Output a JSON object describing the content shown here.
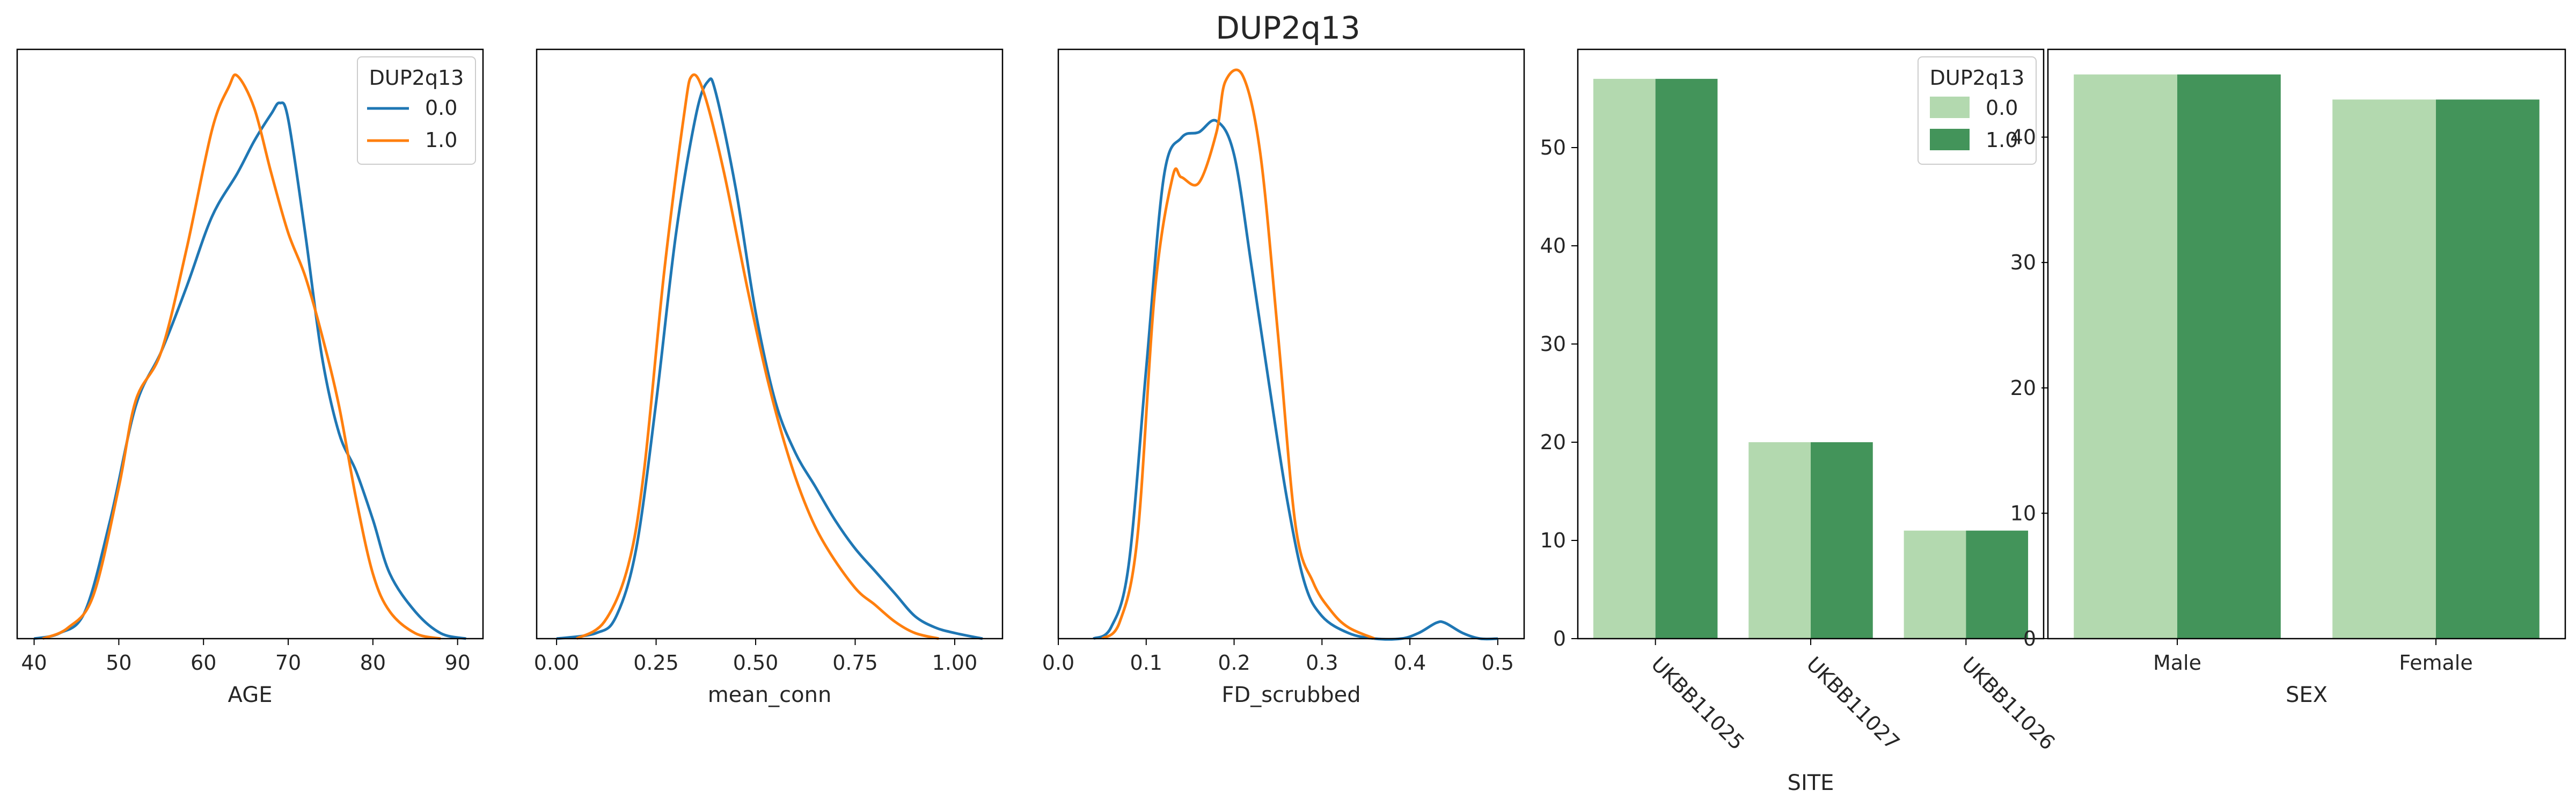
{
  "title": "DUP2q13",
  "colors": {
    "kde_0": "#1f77b4",
    "kde_1": "#ff7f0e",
    "bar_0": "#b3d9af",
    "bar_1": "#43945a"
  },
  "chart_data": [
    {
      "type": "line",
      "subtype": "kde",
      "xlabel": "AGE",
      "xlim": [
        38,
        93
      ],
      "xticks": [
        40,
        50,
        60,
        70,
        80,
        90
      ],
      "ylim": [
        0,
        1
      ],
      "yticks_visible": false,
      "legend": {
        "title": "DUP2q13",
        "placement": "top-right",
        "entries": [
          "0.0",
          "1.0"
        ]
      },
      "series": [
        {
          "name": "0.0",
          "color": "#1f77b4",
          "x": [
            40,
            43,
            46,
            49,
            52,
            55,
            58,
            61,
            64,
            66,
            68,
            69,
            70,
            72,
            74,
            76,
            78,
            80,
            82,
            85,
            88,
            91
          ],
          "y": [
            0.0,
            0.01,
            0.05,
            0.22,
            0.43,
            0.53,
            0.65,
            0.78,
            0.86,
            0.92,
            0.97,
            0.99,
            0.96,
            0.75,
            0.52,
            0.38,
            0.31,
            0.22,
            0.12,
            0.05,
            0.01,
            0.0
          ]
        },
        {
          "name": "1.0",
          "color": "#ff7f0e",
          "x": [
            41,
            44,
            47,
            50,
            52,
            55,
            58,
            61,
            63,
            64,
            66,
            68,
            70,
            72,
            74,
            76,
            78,
            80,
            82,
            85,
            88
          ],
          "y": [
            0.0,
            0.02,
            0.08,
            0.28,
            0.44,
            0.53,
            0.72,
            0.94,
            1.02,
            1.04,
            0.98,
            0.86,
            0.75,
            0.67,
            0.56,
            0.43,
            0.26,
            0.12,
            0.05,
            0.01,
            0.0
          ]
        }
      ]
    },
    {
      "type": "line",
      "subtype": "kde",
      "xlabel": "mean_conn",
      "xlim": [
        -0.05,
        1.12
      ],
      "xticks": [
        0.0,
        0.25,
        0.5,
        0.75,
        1.0
      ],
      "xtick_labels": [
        "0.00",
        "0.25",
        "0.50",
        "0.75",
        "1.00"
      ],
      "ylim": [
        0,
        1
      ],
      "yticks_visible": false,
      "series": [
        {
          "name": "0.0",
          "color": "#1f77b4",
          "x": [
            0.0,
            0.1,
            0.15,
            0.2,
            0.25,
            0.3,
            0.35,
            0.38,
            0.4,
            0.45,
            0.5,
            0.55,
            0.6,
            0.65,
            0.7,
            0.75,
            0.8,
            0.85,
            0.9,
            0.95,
            1.0,
            1.07
          ],
          "y": [
            0.0,
            0.01,
            0.04,
            0.16,
            0.42,
            0.72,
            0.93,
            0.99,
            0.97,
            0.8,
            0.58,
            0.42,
            0.33,
            0.27,
            0.21,
            0.16,
            0.12,
            0.08,
            0.04,
            0.02,
            0.01,
            0.0
          ]
        },
        {
          "name": "1.0",
          "color": "#ff7f0e",
          "x": [
            0.05,
            0.12,
            0.18,
            0.22,
            0.27,
            0.32,
            0.34,
            0.37,
            0.42,
            0.48,
            0.53,
            0.58,
            0.63,
            0.68,
            0.75,
            0.8,
            0.85,
            0.9,
            0.96
          ],
          "y": [
            0.0,
            0.03,
            0.13,
            0.3,
            0.65,
            0.93,
            1.0,
            0.97,
            0.83,
            0.62,
            0.46,
            0.33,
            0.23,
            0.16,
            0.09,
            0.06,
            0.03,
            0.01,
            0.0
          ]
        }
      ]
    },
    {
      "type": "line",
      "subtype": "kde",
      "xlabel": "FD_scrubbed",
      "xlim": [
        0.0,
        0.53
      ],
      "xticks": [
        0.0,
        0.1,
        0.2,
        0.3,
        0.4,
        0.5
      ],
      "xtick_labels": [
        "0.0",
        "0.1",
        "0.2",
        "0.3",
        "0.4",
        "0.5"
      ],
      "ylim": [
        0,
        1
      ],
      "yticks_visible": false,
      "series": [
        {
          "name": "0.0",
          "color": "#1f77b4",
          "x": [
            0.04,
            0.06,
            0.08,
            0.1,
            0.12,
            0.14,
            0.16,
            0.18,
            0.2,
            0.22,
            0.24,
            0.26,
            0.28,
            0.3,
            0.33,
            0.36,
            0.39,
            0.41,
            0.43,
            0.44,
            0.46,
            0.48,
            0.5
          ],
          "y": [
            0.0,
            0.02,
            0.13,
            0.48,
            0.82,
            0.89,
            0.9,
            0.92,
            0.86,
            0.66,
            0.45,
            0.25,
            0.1,
            0.04,
            0.01,
            0.0,
            0.0,
            0.01,
            0.028,
            0.028,
            0.01,
            0.0,
            0.0
          ]
        },
        {
          "name": "1.0",
          "color": "#ff7f0e",
          "x": [
            0.05,
            0.07,
            0.09,
            0.11,
            0.13,
            0.14,
            0.16,
            0.18,
            0.19,
            0.21,
            0.23,
            0.25,
            0.27,
            0.29,
            0.31,
            0.33,
            0.36
          ],
          "y": [
            0.0,
            0.03,
            0.18,
            0.62,
            0.82,
            0.82,
            0.81,
            0.9,
            0.99,
            1.0,
            0.86,
            0.54,
            0.2,
            0.1,
            0.05,
            0.02,
            0.0
          ]
        }
      ]
    },
    {
      "type": "bar",
      "xlabel": "SITE",
      "categories": [
        "UKBB11025",
        "UKBB11027",
        "UKBB11026"
      ],
      "xtick_rotation": -45,
      "ylim": [
        0,
        60
      ],
      "yticks": [
        0,
        10,
        20,
        30,
        40,
        50
      ],
      "legend": {
        "title": "DUP2q13",
        "placement": "top-right",
        "entries": [
          "0.0",
          "1.0"
        ]
      },
      "series": [
        {
          "name": "0.0",
          "color": "#b3d9af",
          "values": [
            57,
            20,
            11
          ]
        },
        {
          "name": "1.0",
          "color": "#43945a",
          "values": [
            57,
            20,
            11
          ]
        }
      ]
    },
    {
      "type": "bar",
      "xlabel": "SEX",
      "categories": [
        "Male",
        "Female"
      ],
      "ylim": [
        0,
        47
      ],
      "yticks": [
        0,
        10,
        20,
        30,
        40
      ],
      "series": [
        {
          "name": "0.0",
          "color": "#b3d9af",
          "values": [
            45,
            43
          ]
        },
        {
          "name": "1.0",
          "color": "#43945a",
          "values": [
            45,
            43
          ]
        }
      ]
    }
  ]
}
